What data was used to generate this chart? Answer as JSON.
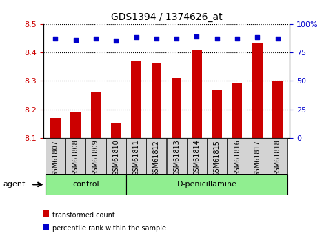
{
  "title": "GDS1394 / 1374626_at",
  "samples": [
    "GSM61807",
    "GSM61808",
    "GSM61809",
    "GSM61810",
    "GSM61811",
    "GSM61812",
    "GSM61813",
    "GSM61814",
    "GSM61815",
    "GSM61816",
    "GSM61817",
    "GSM61818"
  ],
  "transformed_count": [
    8.17,
    8.19,
    8.26,
    8.15,
    8.37,
    8.36,
    8.31,
    8.41,
    8.27,
    8.29,
    8.43,
    8.3
  ],
  "percentile_rank": [
    87,
    86,
    87,
    85,
    88,
    87,
    87,
    89,
    87,
    87,
    88,
    87
  ],
  "groups": [
    {
      "label": "control",
      "start": 0,
      "end": 4
    },
    {
      "label": "D-penicillamine",
      "start": 4,
      "end": 12
    }
  ],
  "ylim_left": [
    8.1,
    8.5
  ],
  "ylim_right": [
    0,
    100
  ],
  "yticks_left": [
    8.1,
    8.2,
    8.3,
    8.4,
    8.5
  ],
  "yticks_right": [
    0,
    25,
    50,
    75,
    100
  ],
  "bar_color": "#cc0000",
  "dot_color": "#0000cc",
  "bar_width": 0.5,
  "group_color": "#90ee90",
  "tick_label_color_left": "#cc0000",
  "tick_label_color_right": "#0000cc",
  "legend_items": [
    {
      "color": "#cc0000",
      "label": "transformed count"
    },
    {
      "color": "#0000cc",
      "label": "percentile rank within the sample"
    }
  ],
  "agent_label": "agent",
  "figsize": [
    4.83,
    3.45
  ],
  "dpi": 100
}
